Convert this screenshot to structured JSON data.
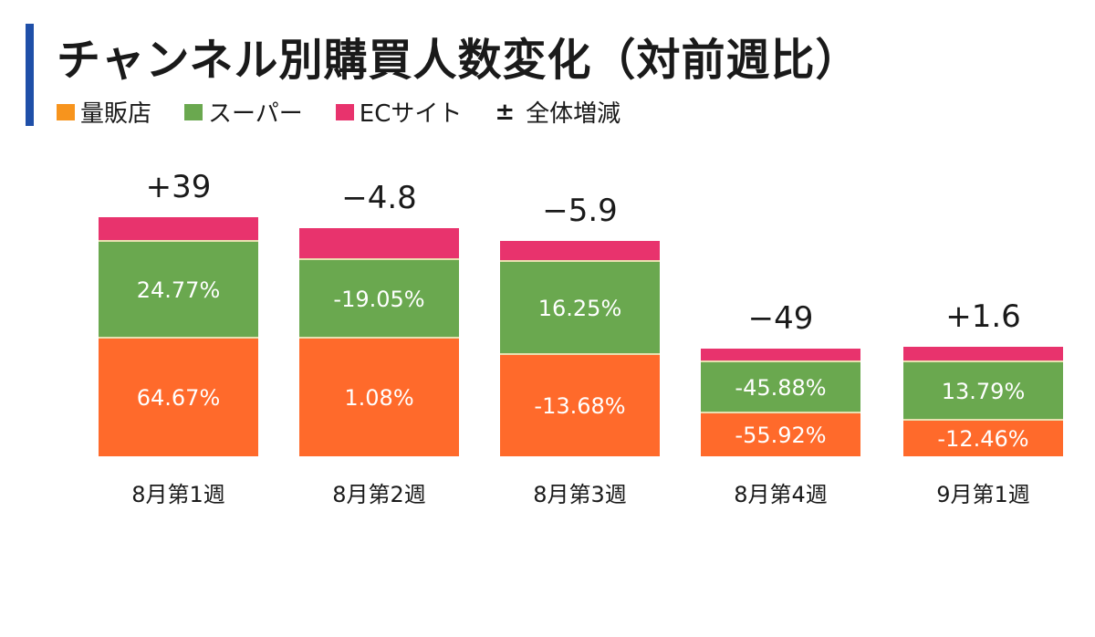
{
  "title": "チャンネル別購買人数変化（対前週比）",
  "legend": {
    "items": [
      {
        "label": "量販店",
        "color": "#f7941d"
      },
      {
        "label": "スーパー",
        "color": "#6aa84f"
      },
      {
        "label": "ECサイト",
        "color": "#e8336d"
      }
    ],
    "total_symbol": "±",
    "total_label": "全体増減"
  },
  "chart_data": {
    "type": "bar",
    "stacked": true,
    "title": "チャンネル別購買人数変化（対前週比）",
    "categories": [
      "8月第1週",
      "8月第2週",
      "8月第3週",
      "8月第4週",
      "9月第1週"
    ],
    "totals": [
      "+39",
      "−4.8",
      "−5.9",
      "−49",
      "+1.6"
    ],
    "series": [
      {
        "name": "量販店",
        "color": "#ff6a2b",
        "labels": [
          "64.67%",
          "1.08%",
          "-13.68%",
          "-55.92%",
          "-12.46%"
        ]
      },
      {
        "name": "スーパー",
        "color": "#6aa84f",
        "labels": [
          "24.77%",
          "-19.05%",
          "16.25%",
          "-45.88%",
          "13.79%"
        ]
      },
      {
        "name": "ECサイト",
        "color": "#e8336d",
        "labels": [
          "",
          "",
          "",
          "",
          ""
        ]
      }
    ],
    "legend_position": "top-left",
    "grid": false
  }
}
